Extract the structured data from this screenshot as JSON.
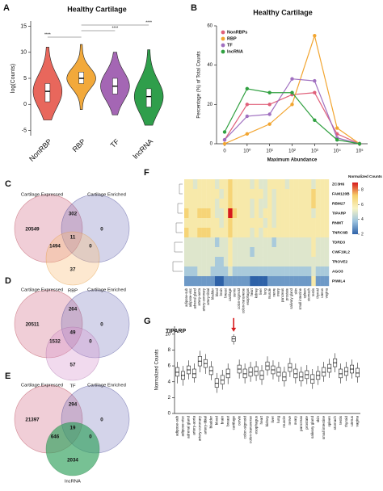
{
  "chart_data": [
    {
      "panel": "A",
      "type": "violin",
      "title": "Healthy Cartilage",
      "y_label": "log(Counts)",
      "categories": [
        "NonRBP",
        "RBP",
        "TF",
        "lncRNA"
      ],
      "colors": [
        "#e8675c",
        "#f2a93b",
        "#a466b4",
        "#2f9e4b"
      ],
      "stats": {
        "min": [
          -3,
          -1,
          -2,
          -4
        ],
        "q1": [
          0.5,
          4,
          2,
          -0.5
        ],
        "median": [
          2.5,
          5,
          3.5,
          1.5
        ],
        "q3": [
          4,
          6.2,
          5,
          3
        ],
        "max": [
          11,
          11.5,
          10,
          10.5
        ]
      },
      "ylim": [
        -6,
        16
      ],
      "yticks": [
        -5,
        0,
        5,
        10,
        15
      ],
      "significance": [
        "****",
        "****",
        "****"
      ]
    },
    {
      "panel": "B",
      "type": "line",
      "title": "Healthy Cartilage",
      "x_label": "Maximum Abundance",
      "y_label": "Percentage (%) of Total Counts",
      "categories": [
        "0",
        "10⁰",
        "10¹",
        "10²",
        "10³",
        "10⁴",
        "10⁵"
      ],
      "series": [
        {
          "name": "NonRBPs",
          "color": "#e0607a",
          "values": [
            2,
            20,
            20,
            25,
            26,
            5,
            0
          ]
        },
        {
          "name": "RBP",
          "color": "#f2a530",
          "values": [
            0,
            5,
            10,
            20,
            55,
            8,
            0
          ]
        },
        {
          "name": "TF",
          "color": "#a070c0",
          "values": [
            2,
            14,
            15,
            33,
            32,
            3,
            0
          ]
        },
        {
          "name": "lncRNA",
          "color": "#30a040",
          "values": [
            6,
            28,
            26,
            26,
            12,
            2,
            0
          ]
        }
      ],
      "ylim": [
        0,
        60
      ],
      "yticks": [
        0,
        20,
        40,
        60
      ],
      "legend": "upper left"
    },
    {
      "panel": "C",
      "type": "venn",
      "sets": [
        {
          "name": "Cartilage Expressed",
          "color": "rgba(200,80,110,0.28)",
          "label_color": "#b0303f"
        },
        {
          "name": "Cartilage Enriched",
          "color": "rgba(100,100,180,0.28)",
          "label_color": "#3a3a90"
        },
        {
          "name": "RBP",
          "color": "rgba(248,190,120,0.35)",
          "label_color": "#e0902a"
        }
      ],
      "regions": [
        20549,
        302,
        0,
        1494,
        11,
        0,
        37
      ]
    },
    {
      "panel": "D",
      "type": "venn",
      "sets": [
        {
          "name": "Cartilage Expressed",
          "color": "rgba(200,80,110,0.28)",
          "label_color": "#b0303f"
        },
        {
          "name": "Cartilage Enriched",
          "color": "rgba(100,100,180,0.28)",
          "label_color": "#3a3a90"
        },
        {
          "name": "TF",
          "color": "rgba(215,150,205,0.35)",
          "label_color": "#a060a0"
        }
      ],
      "regions": [
        20511,
        264,
        0,
        1532,
        49,
        0,
        57
      ]
    },
    {
      "panel": "E",
      "type": "venn",
      "sets": [
        {
          "name": "Cartilage Expressed",
          "color": "rgba(200,80,110,0.28)",
          "label_color": "#b0303f"
        },
        {
          "name": "Cartilage Enriched",
          "color": "rgba(100,100,180,0.28)",
          "label_color": "#3a3a90"
        },
        {
          "name": "lncRNA",
          "color": "rgba(46,160,90,0.65)",
          "label_color": "#208040"
        }
      ],
      "regions": [
        21397,
        294,
        0,
        646,
        19,
        0,
        2034
      ]
    },
    {
      "panel": "F",
      "type": "heatmap",
      "colorbar_label": "Normalized Counts",
      "rows": [
        "ZC3H6",
        "FAM120B",
        "RBM27",
        "TIPARP",
        "RNMT",
        "TNRC6B",
        "TDRD3",
        "CWF19L2",
        "TROVE2",
        "AGO3",
        "PIWIL4"
      ],
      "columns": [
        "adipose-sub",
        "adipose-visc",
        "adrenal gland",
        "artery-aorta",
        "artery-coronary",
        "artery-tibial",
        "bladder",
        "blood",
        "brain",
        "breast",
        "cartilage",
        "cervix",
        "colon-sigmoid",
        "colon-transverse",
        "esophagus",
        "heart",
        "kidney",
        "liver",
        "lung",
        "muscle",
        "nerve",
        "ovary",
        "pancreas",
        "prostate",
        "salivary gland",
        "skin",
        "small intestine",
        "spleen",
        "stomach",
        "testis",
        "thyroid",
        "uterus",
        "vagina"
      ],
      "highlight": "cartilage",
      "highlight_color": "#d7191c",
      "values": [
        [
          6,
          6,
          5,
          6,
          6,
          6,
          6,
          5,
          6,
          6,
          7,
          6,
          6,
          6,
          6,
          5,
          6,
          5,
          5,
          6,
          6,
          6,
          6,
          5,
          6,
          6,
          6,
          6,
          6,
          5,
          6,
          6,
          6
        ],
        [
          6,
          6,
          6,
          6,
          6,
          6,
          6,
          6,
          5,
          6,
          7,
          6,
          6,
          6,
          6,
          6,
          6,
          6,
          5,
          6,
          5,
          6,
          6,
          6,
          6,
          6,
          6,
          6,
          6,
          7,
          6,
          6,
          6
        ],
        [
          6,
          6,
          6,
          6,
          6,
          6,
          6,
          5,
          6,
          6,
          7,
          6,
          6,
          6,
          6,
          5,
          6,
          5,
          5,
          6,
          5,
          6,
          6,
          6,
          6,
          6,
          6,
          6,
          6,
          7,
          6,
          6,
          6
        ],
        [
          7,
          6,
          6,
          7,
          7,
          7,
          6,
          5,
          5,
          6,
          9,
          7,
          6,
          6,
          6,
          5,
          6,
          5,
          6,
          6,
          5,
          6,
          6,
          6,
          6,
          6,
          6,
          6,
          6,
          5,
          6,
          6,
          6
        ],
        [
          6,
          6,
          6,
          6,
          6,
          6,
          6,
          6,
          5,
          6,
          7,
          6,
          6,
          6,
          6,
          6,
          6,
          6,
          5,
          6,
          5,
          6,
          6,
          6,
          6,
          6,
          6,
          6,
          6,
          6,
          6,
          6,
          6
        ],
        [
          7,
          6,
          6,
          7,
          7,
          7,
          6,
          6,
          6,
          6,
          7,
          6,
          6,
          6,
          6,
          5,
          6,
          5,
          6,
          6,
          6,
          6,
          6,
          6,
          6,
          6,
          6,
          6,
          6,
          6,
          6,
          6,
          6
        ],
        [
          5,
          5,
          5,
          5,
          5,
          5,
          5,
          4,
          5,
          5,
          6,
          5,
          5,
          5,
          5,
          5,
          5,
          5,
          5,
          5,
          4,
          5,
          5,
          5,
          5,
          5,
          5,
          5,
          5,
          6,
          5,
          5,
          5
        ],
        [
          5,
          5,
          5,
          5,
          5,
          5,
          5,
          5,
          5,
          5,
          6,
          5,
          5,
          5,
          5,
          4,
          5,
          5,
          5,
          5,
          5,
          5,
          5,
          5,
          5,
          5,
          5,
          5,
          5,
          6,
          5,
          5,
          5
        ],
        [
          5,
          5,
          5,
          5,
          5,
          5,
          5,
          4,
          4,
          5,
          6,
          5,
          5,
          5,
          5,
          5,
          5,
          5,
          5,
          5,
          5,
          5,
          5,
          5,
          5,
          5,
          5,
          5,
          5,
          5,
          5,
          5,
          5
        ],
        [
          4,
          4,
          4,
          5,
          5,
          5,
          4,
          4,
          4,
          4,
          5,
          4,
          4,
          4,
          4,
          4,
          4,
          4,
          4,
          4,
          4,
          4,
          4,
          4,
          4,
          4,
          4,
          4,
          4,
          5,
          4,
          4,
          4
        ],
        [
          3,
          3,
          3,
          3,
          3,
          3,
          3,
          2,
          2,
          3,
          3,
          3,
          3,
          3,
          3,
          2,
          2,
          2,
          2,
          3,
          3,
          3,
          3,
          3,
          3,
          3,
          3,
          3,
          3,
          6,
          3,
          3,
          3
        ]
      ],
      "colors": [
        "#2e62a8",
        "#9cc3df",
        "#f8f4c4",
        "#f6cf6a",
        "#d7191c"
      ],
      "clim": [
        2,
        9
      ],
      "colorbar_ticks": [
        2,
        4,
        6,
        8
      ]
    },
    {
      "panel": "G",
      "type": "box",
      "title": "TIPARP",
      "y_label": "Normalized Counts",
      "categories": [
        "adipose-sub",
        "adipose-visc",
        "adrenal gland",
        "artery-aorta",
        "artery-coronary",
        "artery-tibial",
        "bladder",
        "blood",
        "brain",
        "breast",
        "cartilage",
        "cervix",
        "colon-sigmoid",
        "colon-transverse",
        "esophagus",
        "heart",
        "kidney",
        "liver",
        "lung",
        "muscle",
        "nerve",
        "ovary",
        "pancreas",
        "prostate",
        "salivary gland",
        "skin",
        "small intestine",
        "spleen",
        "stomach",
        "testis",
        "thyroid",
        "uterus",
        "vagina"
      ],
      "highlight": "cartilage",
      "highlight_color": "#d7191c",
      "stats": {
        "min": [
          3.8,
          3.5,
          4.3,
          3.9,
          5.2,
          5.0,
          4.2,
          2.6,
          3.0,
          3.7,
          8.7,
          4.4,
          3.8,
          4.0,
          4.1,
          3.6,
          4.8,
          4.3,
          4.0,
          3.4,
          4.6,
          3.8,
          3.4,
          3.7,
          3.1,
          3.6,
          4.0,
          4.5,
          5.2,
          3.8,
          4.1,
          4.4,
          3.9
        ],
        "q1": [
          4.7,
          4.3,
          5.0,
          4.5,
          6.0,
          5.8,
          4.9,
          3.3,
          3.7,
          4.5,
          9.1,
          5.1,
          4.5,
          4.7,
          4.8,
          4.3,
          5.5,
          5.0,
          4.7,
          4.1,
          5.3,
          4.5,
          4.1,
          4.4,
          3.8,
          4.3,
          4.7,
          5.2,
          5.9,
          4.5,
          4.8,
          5.1,
          4.6
        ],
        "median": [
          5.2,
          4.8,
          5.5,
          5.0,
          6.6,
          6.3,
          5.4,
          3.8,
          4.2,
          5.0,
          9.4,
          5.6,
          5.0,
          5.2,
          5.3,
          4.8,
          6.0,
          5.5,
          5.2,
          4.6,
          5.8,
          5.0,
          4.6,
          4.9,
          4.3,
          4.8,
          5.2,
          5.7,
          6.4,
          5.0,
          5.3,
          5.6,
          5.1
        ],
        "q3": [
          5.8,
          5.3,
          6.0,
          5.6,
          7.2,
          6.8,
          5.9,
          4.4,
          4.8,
          5.6,
          9.7,
          6.1,
          5.6,
          5.8,
          5.9,
          5.4,
          6.5,
          6.0,
          5.8,
          5.2,
          6.3,
          5.6,
          5.2,
          5.4,
          4.9,
          5.3,
          5.8,
          6.2,
          6.9,
          5.6,
          5.8,
          6.1,
          5.7
        ],
        "max": [
          6.5,
          6.0,
          6.7,
          6.3,
          7.9,
          7.5,
          6.6,
          5.1,
          5.5,
          6.3,
          10.0,
          6.8,
          6.3,
          6.5,
          6.6,
          6.1,
          7.2,
          6.7,
          6.5,
          5.9,
          7.0,
          6.3,
          5.9,
          6.1,
          5.6,
          6.0,
          6.5,
          6.9,
          7.6,
          6.3,
          6.5,
          6.8,
          6.4
        ]
      },
      "ylim": [
        0,
        11
      ],
      "yticks": [
        0,
        2,
        4,
        6,
        8,
        10
      ]
    }
  ]
}
